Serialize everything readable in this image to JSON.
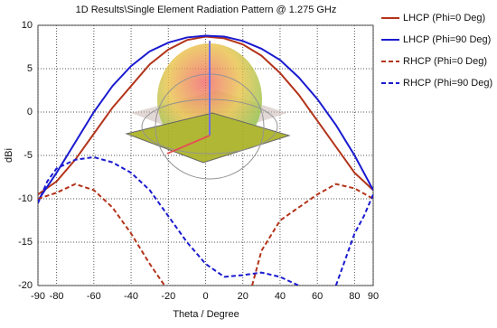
{
  "chart_data": {
    "type": "line",
    "title": "1D Results\\Single Element Radiation Pattern @ 1.275 GHz",
    "x_label": "Theta / Degree",
    "y_label": "dBi",
    "xlim": [
      -90,
      90
    ],
    "xticks": [
      -90,
      -80,
      -60,
      -40,
      -20,
      0,
      20,
      40,
      60,
      80,
      90
    ],
    "ylim": [
      -20,
      10
    ],
    "yticks": [
      10,
      5,
      0,
      -5,
      -10,
      -15,
      -20
    ],
    "grid": true,
    "legend": "outside-right",
    "series": [
      {
        "name": "LHCP (Phi=0 Deg)",
        "color": "#b3341a",
        "dash": false,
        "x": [
          -90,
          -80,
          -70,
          -60,
          -50,
          -40,
          -30,
          -20,
          -10,
          0,
          10,
          20,
          30,
          40,
          50,
          60,
          70,
          80,
          90
        ],
        "values": [
          -9.5,
          -8,
          -5.5,
          -2.5,
          0.5,
          3,
          5.5,
          7.2,
          8.3,
          8.7,
          8.5,
          7.8,
          6.5,
          4.5,
          2,
          -1,
          -4,
          -7,
          -9
        ]
      },
      {
        "name": "LHCP (Phi=90 Deg)",
        "color": "#1a1ad0",
        "dash": false,
        "x": [
          -90,
          -80,
          -70,
          -60,
          -50,
          -40,
          -30,
          -20,
          -10,
          0,
          10,
          20,
          30,
          40,
          50,
          60,
          70,
          80,
          90
        ],
        "values": [
          -10.2,
          -7,
          -3.5,
          0,
          3,
          5.3,
          7,
          8,
          8.6,
          8.8,
          8.7,
          8.2,
          7.3,
          6,
          4,
          1.5,
          -1.5,
          -5,
          -9
        ]
      },
      {
        "name": "RHCP (Phi=0 Deg)",
        "color": "#b3341a",
        "dash": true,
        "x": [
          -90,
          -80,
          -70,
          -60,
          -50,
          -40,
          -30,
          -22,
          0,
          25,
          30,
          40,
          50,
          60,
          70,
          80,
          90
        ],
        "values": [
          -10,
          -9.3,
          -8.3,
          -9,
          -11,
          -14,
          -17.5,
          -20,
          null,
          -20,
          -16,
          -12.5,
          -11,
          -9.5,
          -8.3,
          -8.8,
          -10
        ]
      },
      {
        "name": "RHCP (Phi=90 Deg)",
        "color": "#1a1ad0",
        "dash": true,
        "x": [
          -90,
          -85,
          -80,
          -70,
          -60,
          -50,
          -40,
          -30,
          -20,
          -10,
          0,
          10,
          20,
          30,
          40,
          50,
          60,
          70,
          80,
          85,
          90
        ],
        "values": [
          -10.5,
          -8,
          -6.5,
          -5.5,
          -5.2,
          -5.8,
          -7,
          -9,
          -12,
          -15,
          -17.5,
          -19,
          -18.8,
          -18.5,
          -19,
          -20,
          null,
          -20,
          -14,
          -12,
          -9.5
        ]
      }
    ]
  }
}
